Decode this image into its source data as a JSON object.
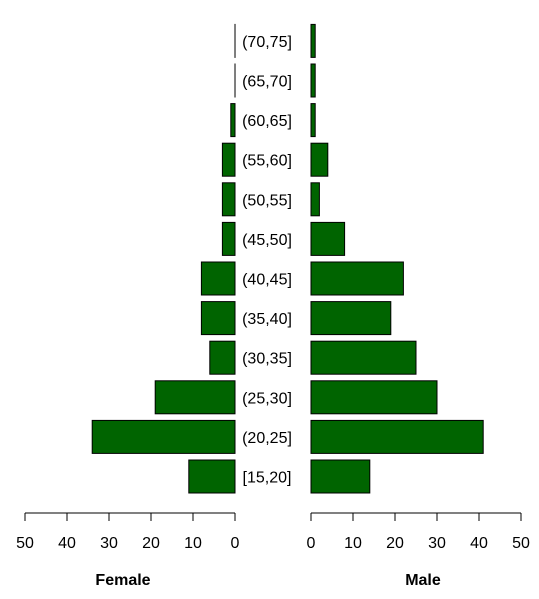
{
  "chart_data": {
    "type": "bar",
    "orientation": "horizontal",
    "layout": "population-pyramid",
    "bar_color": "#006400",
    "categories": [
      "[15,20]",
      "(20,25]",
      "(25,30]",
      "(30,35]",
      "(35,40]",
      "(40,45]",
      "(45,50]",
      "(50,55]",
      "(55,60]",
      "(60,65]",
      "(65,70]",
      "(70,75]"
    ],
    "series": [
      {
        "name": "Female",
        "values": [
          11,
          34,
          19,
          6,
          8,
          8,
          3,
          3,
          3,
          1,
          0,
          0
        ]
      },
      {
        "name": "Male",
        "values": [
          14,
          41,
          30,
          25,
          19,
          22,
          8,
          2,
          4,
          1,
          1,
          1
        ]
      }
    ],
    "xlim": [
      0,
      50
    ],
    "ticks": [
      0,
      10,
      20,
      30,
      40,
      50
    ],
    "tick_labels": [
      "0",
      "10",
      "20",
      "30",
      "40",
      "50"
    ],
    "grid": false,
    "legend": "none"
  }
}
